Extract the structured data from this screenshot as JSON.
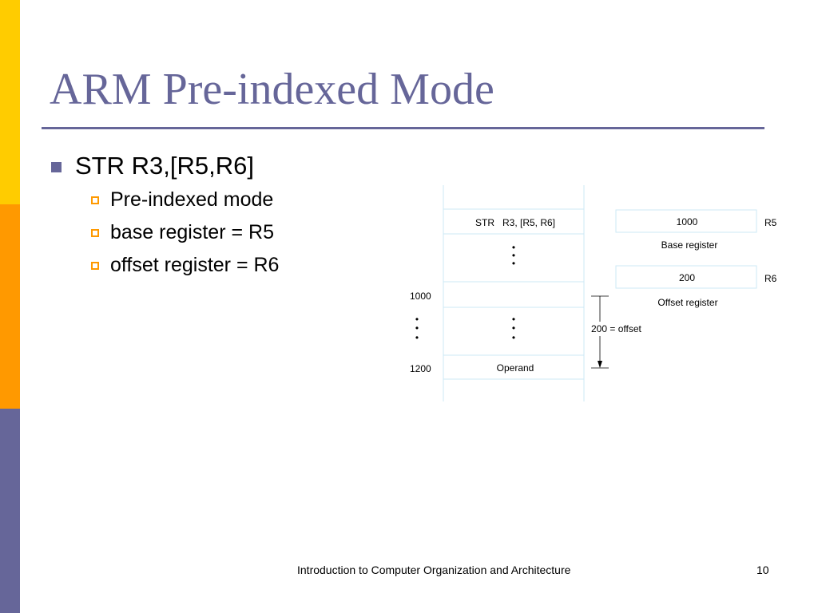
{
  "slide": {
    "title": "ARM Pre-indexed Mode",
    "bullet": "STR R3,[R5,R6]",
    "sub_bullets": [
      "Pre-indexed mode",
      "base register = R5",
      "offset register = R6"
    ]
  },
  "diagram": {
    "instruction": "STR   R3, [R5, R6]",
    "operand": "Operand",
    "addresses": [
      "1000",
      "1200"
    ],
    "dots": "•",
    "registers": [
      {
        "value": "1000",
        "caption": "Base register",
        "name": "R5"
      },
      {
        "value": "200",
        "caption": "Offset register",
        "name": "R6"
      }
    ],
    "offset_label": "200 = offset"
  },
  "footer": {
    "course": "Introduction to Computer Organization and Architecture",
    "page": "10"
  },
  "colors": {
    "accent": "#666699",
    "yellow": "#ffcc00",
    "orange": "#ff9900",
    "diagram_line": "#cce9f5"
  }
}
